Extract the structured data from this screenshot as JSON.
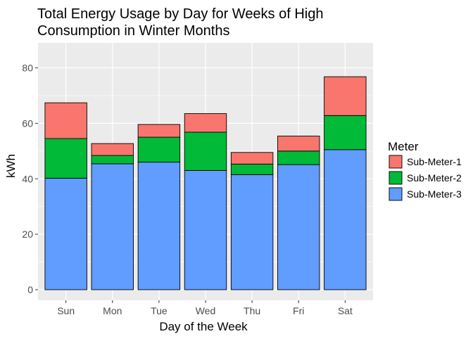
{
  "chart_data": {
    "type": "bar",
    "stacked": true,
    "title_lines": [
      "Total Energy Usage by Day for Weeks of High",
      "Consumption in Winter Months"
    ],
    "xlabel": "Day of the Week",
    "ylabel": "kWh",
    "ylim": [
      -3.8,
      89
    ],
    "yticks": [
      0,
      20,
      40,
      60,
      80
    ],
    "grid": true,
    "legend_position": "right",
    "legend_title": "Meter",
    "categories": [
      "Sun",
      "Mon",
      "Tue",
      "Wed",
      "Thu",
      "Fri",
      "Sat"
    ],
    "series": [
      {
        "name": "Sub-Meter-3",
        "color": "#619CFF",
        "values": [
          40.2,
          45.4,
          46.0,
          43.0,
          41.5,
          45.1,
          50.5
        ]
      },
      {
        "name": "Sub-Meter-2",
        "color": "#00BA38",
        "values": [
          14.3,
          3.0,
          9.0,
          13.8,
          3.8,
          4.9,
          12.3
        ]
      },
      {
        "name": "Sub-Meter-1",
        "color": "#F8766D",
        "values": [
          12.9,
          4.3,
          4.6,
          6.7,
          4.2,
          5.4,
          14.0
        ]
      }
    ],
    "legend_order": [
      "Sub-Meter-1",
      "Sub-Meter-2",
      "Sub-Meter-3"
    ],
    "panel_background": "#EBEBEB",
    "grid_color": "#FFFFFF"
  }
}
